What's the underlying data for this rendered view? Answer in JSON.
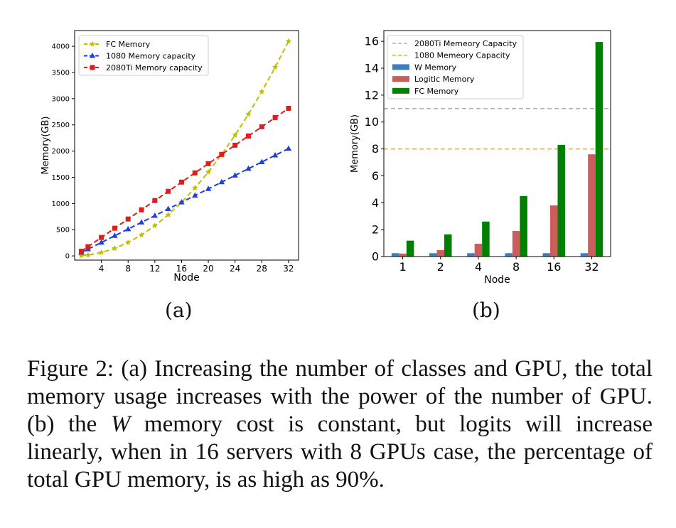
{
  "chart_data": [
    {
      "type": "line",
      "panel": "a",
      "xlabel": "Node",
      "ylabel": "Memory(GB)",
      "x": [
        1,
        2,
        4,
        6,
        8,
        10,
        12,
        14,
        16,
        18,
        20,
        22,
        24,
        26,
        28,
        30,
        32
      ],
      "xticks": [
        "4",
        "8",
        "12",
        "16",
        "20",
        "24",
        "28",
        "32"
      ],
      "xtick_values": [
        4,
        8,
        12,
        16,
        20,
        24,
        28,
        32
      ],
      "yticks": [
        "0",
        "500",
        "1000",
        "1500",
        "2000",
        "2500",
        "3000",
        "3500",
        "4000"
      ],
      "ytick_values": [
        0,
        500,
        1000,
        1500,
        2000,
        2500,
        3000,
        3500,
        4000
      ],
      "xlim": [
        0,
        33.5
      ],
      "ylim": [
        -80,
        4300
      ],
      "legend_position": "top-left",
      "grid": false,
      "series": [
        {
          "name": "FC Memory",
          "color": "#bfbf00",
          "marker": "star",
          "values": [
            4,
            16,
            64,
            144,
            256,
            400,
            576,
            784,
            1024,
            1296,
            1600,
            1936,
            2304,
            2704,
            3136,
            3600,
            4096
          ]
        },
        {
          "name": "1080 Memory capacity",
          "color": "#1f3fd9",
          "marker": "triangle",
          "values": [
            64,
            128,
            256,
            384,
            512,
            640,
            768,
            896,
            1024,
            1152,
            1280,
            1408,
            1536,
            1664,
            1792,
            1920,
            2048
          ]
        },
        {
          "name": "2080Ti Memory capacity",
          "color": "#e01b1b",
          "marker": "square",
          "values": [
            88,
            176,
            352,
            528,
            704,
            880,
            1056,
            1232,
            1408,
            1584,
            1760,
            1936,
            2112,
            2288,
            2464,
            2640,
            2816
          ]
        }
      ]
    },
    {
      "type": "bar",
      "panel": "b",
      "xlabel": "Node",
      "ylabel": "Memory(GB)",
      "categories": [
        "1",
        "2",
        "4",
        "8",
        "16",
        "32"
      ],
      "yticks": [
        "0",
        "2",
        "4",
        "6",
        "8",
        "10",
        "12",
        "14",
        "16"
      ],
      "ytick_values": [
        0,
        2,
        4,
        6,
        8,
        10,
        12,
        14,
        16
      ],
      "ylim": [
        0,
        16.8
      ],
      "legend_position": "top-left",
      "grid": false,
      "hlines": [
        {
          "name": "2080Ti Memeory Capacity",
          "value": 11,
          "color": "#b0b0b0"
        },
        {
          "name": "1080 Memeory Capacity",
          "value": 8,
          "color": "#ffa500"
        }
      ],
      "series": [
        {
          "name": "W Memory",
          "color": "#3f7fbf",
          "values": [
            0.25,
            0.25,
            0.25,
            0.25,
            0.25,
            0.25
          ]
        },
        {
          "name": "Logitic Memory",
          "color": "#cd5c5c",
          "values": [
            0.22,
            0.48,
            0.95,
            1.9,
            3.8,
            7.6
          ]
        },
        {
          "name": "FC Memory",
          "color": "#008000",
          "values": [
            1.18,
            1.65,
            2.6,
            4.5,
            8.3,
            15.95
          ]
        }
      ]
    }
  ],
  "sublabels": {
    "a": "(a)",
    "b": "(b)"
  },
  "caption": {
    "part1": "Figure 2: (a) Increasing the number of classes and GPU, the total memory usage increases with the power of the number of GPU. (b) the ",
    "symbol": "W",
    "part2": " memory cost is constant, but logits will increase linearly, when in 16 servers with 8 GPUs case, the percentage of total GPU memory, is as high as 90%."
  }
}
